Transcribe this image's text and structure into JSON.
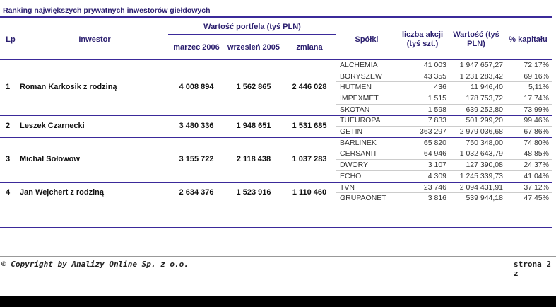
{
  "title": "Ranking największych prywatnych inwestorów giełdowych",
  "header": {
    "lp": "Lp",
    "inwestor": "Inwestor",
    "portfel": "Wartość portfela (tyś PLN)",
    "marzec": "marzec 2006",
    "wrzesien": "wrzesień 2005",
    "zmiana": "zmiana",
    "spolki": "Spółki",
    "akcje": "liczba akcji (tyś szt.)",
    "wartosc": "Wartość (tyś PLN)",
    "kapital": "% kapitału"
  },
  "investors": [
    {
      "lp": "1",
      "name": "Roman Karkosik z rodziną",
      "marzec": "4 008 894",
      "wrzesien": "1 562 865",
      "zmiana": "2 446 028",
      "holdings": [
        [
          "ALCHEMIA",
          "41 003",
          "1 947 657,27",
          "72,17%"
        ],
        [
          "BORYSZEW",
          "43 355",
          "1 231 283,42",
          "69,16%"
        ],
        [
          "HUTMEN",
          "436",
          "11 946,40",
          "5,11%"
        ],
        [
          "IMPEXMET",
          "1 515",
          "178 753,72",
          "17,74%"
        ],
        [
          "SKOTAN",
          "1 598",
          "639 252,80",
          "73,99%"
        ]
      ]
    },
    {
      "lp": "2",
      "name": "Leszek Czarnecki",
      "marzec": "3 480 336",
      "wrzesien": "1 948 651",
      "zmiana": "1 531 685",
      "holdings": [
        [
          "TUEUROPA",
          "7 833",
          "501 299,20",
          "99,46%"
        ],
        [
          "GETIN",
          "363 297",
          "2 979 036,68",
          "67,86%"
        ]
      ]
    },
    {
      "lp": "3",
      "name": "Michał Sołowow",
      "marzec": "3 155 722",
      "wrzesien": "2 118 438",
      "zmiana": "1 037 283",
      "holdings": [
        [
          "BARLINEK",
          "65 820",
          "750 348,00",
          "74,80%"
        ],
        [
          "CERSANIT",
          "64 946",
          "1 032 643,79",
          "48,85%"
        ],
        [
          "DWORY",
          "3 107",
          "127 390,08",
          "24,37%"
        ],
        [
          "ECHO",
          "4 309",
          "1 245 339,73",
          "41,04%"
        ]
      ]
    },
    {
      "lp": "4",
      "name": "Jan Wejchert z rodziną",
      "marzec": "2 634 376",
      "wrzesien": "1 523 916",
      "zmiana": "1 110 460",
      "holdings": [
        [
          "TVN",
          "23 746",
          "2 094 431,91",
          "37,12%"
        ],
        [
          "GRUPAONET",
          "3 816",
          "539 944,18",
          "47,45%"
        ]
      ]
    }
  ],
  "footer": {
    "copyright": "© Copyright by Analizy Online Sp. z o.o.",
    "page": "strona 2 z"
  }
}
